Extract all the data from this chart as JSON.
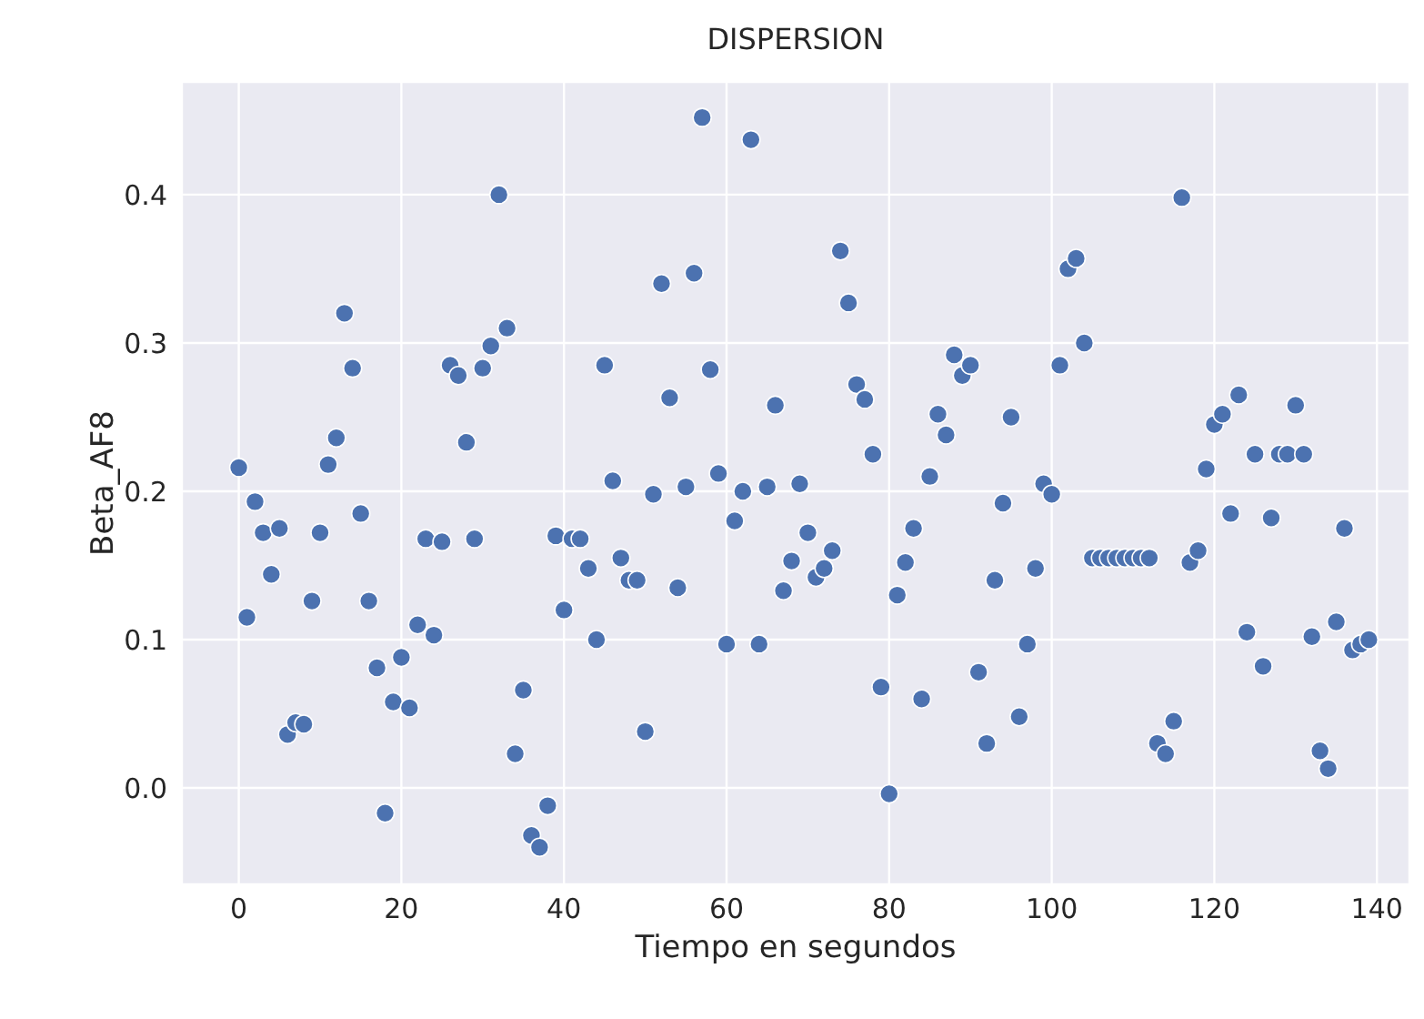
{
  "chart_data": {
    "type": "scatter",
    "title": "DISPERSION",
    "xlabel": "Tiempo en segundos",
    "ylabel": "Beta_AF8",
    "x": [
      0,
      1,
      2,
      3,
      4,
      5,
      6,
      7,
      8,
      9,
      10,
      11,
      12,
      13,
      14,
      15,
      16,
      17,
      18,
      19,
      20,
      21,
      22,
      23,
      24,
      25,
      26,
      27,
      28,
      29,
      30,
      31,
      32,
      33,
      34,
      35,
      36,
      37,
      38,
      39,
      40,
      41,
      42,
      43,
      44,
      45,
      46,
      47,
      48,
      49,
      50,
      51,
      52,
      53,
      54,
      55,
      56,
      57,
      58,
      59,
      60,
      61,
      62,
      63,
      64,
      65,
      66,
      67,
      68,
      69,
      70,
      71,
      72,
      73,
      74,
      75,
      76,
      77,
      78,
      79,
      80,
      81,
      82,
      83,
      84,
      85,
      86,
      87,
      88,
      89,
      90,
      91,
      92,
      93,
      94,
      95,
      96,
      97,
      98,
      99,
      100,
      101,
      102,
      103,
      104,
      105,
      106,
      107,
      108,
      109,
      110,
      111,
      112,
      113,
      114,
      115,
      116,
      117,
      118,
      119,
      120,
      121,
      122,
      123,
      124,
      125,
      126,
      127,
      128,
      129,
      130,
      131,
      132,
      133,
      134,
      135,
      136,
      137,
      138,
      139
    ],
    "series": [
      {
        "color": "#4c72b0",
        "values": [
          0.216,
          0.115,
          0.193,
          0.172,
          0.144,
          0.175,
          0.036,
          0.044,
          0.043,
          0.126,
          0.172,
          0.218,
          0.236,
          0.32,
          0.283,
          0.185,
          0.126,
          0.081,
          -0.017,
          0.058,
          0.088,
          0.054,
          0.11,
          0.168,
          0.103,
          0.166,
          0.285,
          0.278,
          0.233,
          0.168,
          0.283,
          0.298,
          0.4,
          0.31,
          0.023,
          0.066,
          -0.032,
          -0.04,
          -0.012,
          0.17,
          0.12,
          0.168,
          0.168,
          0.148,
          0.1,
          0.285,
          0.207,
          0.155,
          0.14,
          0.14,
          0.038,
          0.198,
          0.34,
          0.263,
          0.135,
          0.203,
          0.347,
          0.452,
          0.282,
          0.212,
          0.097,
          0.18,
          0.2,
          0.437,
          0.097,
          0.203,
          0.258,
          0.133,
          0.153,
          0.205,
          0.172,
          0.142,
          0.148,
          0.16,
          0.362,
          0.327,
          0.272,
          0.262,
          0.225,
          0.068,
          -0.004,
          0.13,
          0.152,
          0.175,
          0.06,
          0.21,
          0.252,
          0.238,
          0.292,
          0.278,
          0.285,
          0.078,
          0.03,
          0.14,
          0.192,
          0.25,
          0.048,
          0.097,
          0.148,
          0.205,
          0.198,
          0.285,
          0.35,
          0.357,
          0.3,
          0.155,
          0.155,
          0.155,
          0.155,
          0.155,
          0.155,
          0.155,
          0.155,
          0.03,
          0.023,
          0.045,
          0.398,
          0.152,
          0.16,
          0.215,
          0.245,
          0.252,
          0.185,
          0.265,
          0.105,
          0.225,
          0.082,
          0.182,
          0.225,
          0.225,
          0.258,
          0.225,
          0.102,
          0.025,
          0.013,
          0.112,
          0.175,
          0.093,
          0.097,
          0.1
        ]
      }
    ],
    "xlim": [
      -7,
      144
    ],
    "xticks": [
      0,
      20,
      40,
      60,
      80,
      100,
      120,
      140
    ],
    "ylim": [
      -0.065,
      0.476
    ],
    "yticks": [
      {
        "value": 0,
        "label": "0.0"
      },
      {
        "value": 0.1,
        "label": "0.1"
      },
      {
        "value": 0.2,
        "label": "0.2"
      },
      {
        "value": 0.3,
        "label": "0.3"
      },
      {
        "value": 0.4,
        "label": "0.4"
      }
    ],
    "grid": true,
    "marker": "circle",
    "legend": false
  }
}
